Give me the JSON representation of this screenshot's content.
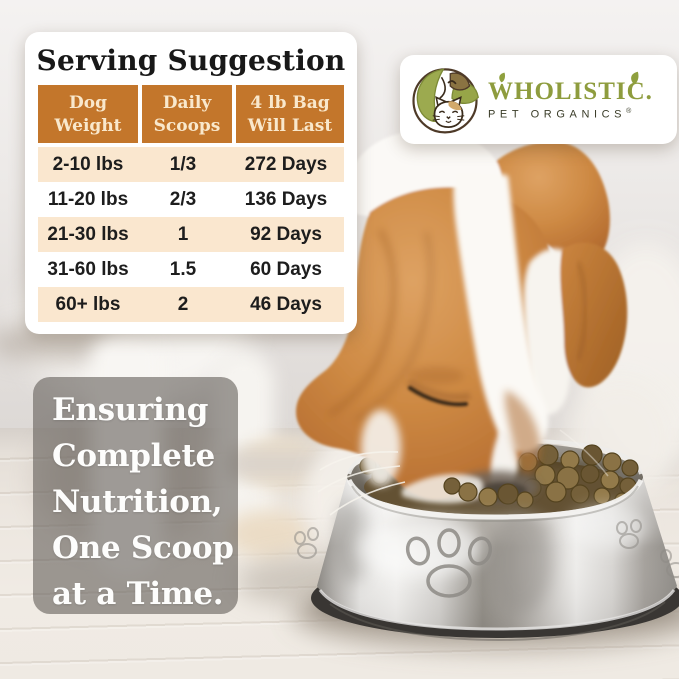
{
  "brand": {
    "name": "WHOLISTIC.",
    "sub": "PET ORGANICS",
    "registered": "®",
    "logo_icon": "dog-cat-leaves-circle"
  },
  "serving_table": {
    "title": "Serving Suggestion",
    "columns": [
      [
        "Dog",
        "Weight"
      ],
      [
        "Daily",
        "Scoops"
      ],
      [
        "4 lb Bag",
        "Will Last"
      ]
    ],
    "rows": [
      [
        "2-10 lbs",
        "1/3",
        "272 Days"
      ],
      [
        "11-20 lbs",
        "2/3",
        "136 Days"
      ],
      [
        "21-30 lbs",
        "1",
        "92 Days"
      ],
      [
        "31-60 lbs",
        "1.5",
        "60 Days"
      ],
      [
        "60+ lbs",
        "2",
        "46 Days"
      ]
    ]
  },
  "tagline": {
    "lines": [
      "Ensuring",
      "Complete",
      "Nutrition,",
      "One Scoop",
      "at a Time."
    ]
  },
  "colors": {
    "table_header_bg": "#C3762B",
    "table_row_alt_bg": "#FAE7CF",
    "brand_green": "#8E9C3E",
    "brand_dark": "#3A3C28",
    "panel_overlay": "rgba(98,93,89,0.60)"
  },
  "photo": {
    "alt": "Jack Russell terrier eating kibble from a stainless steel paw-print bowl on a whitewashed wood floor"
  }
}
